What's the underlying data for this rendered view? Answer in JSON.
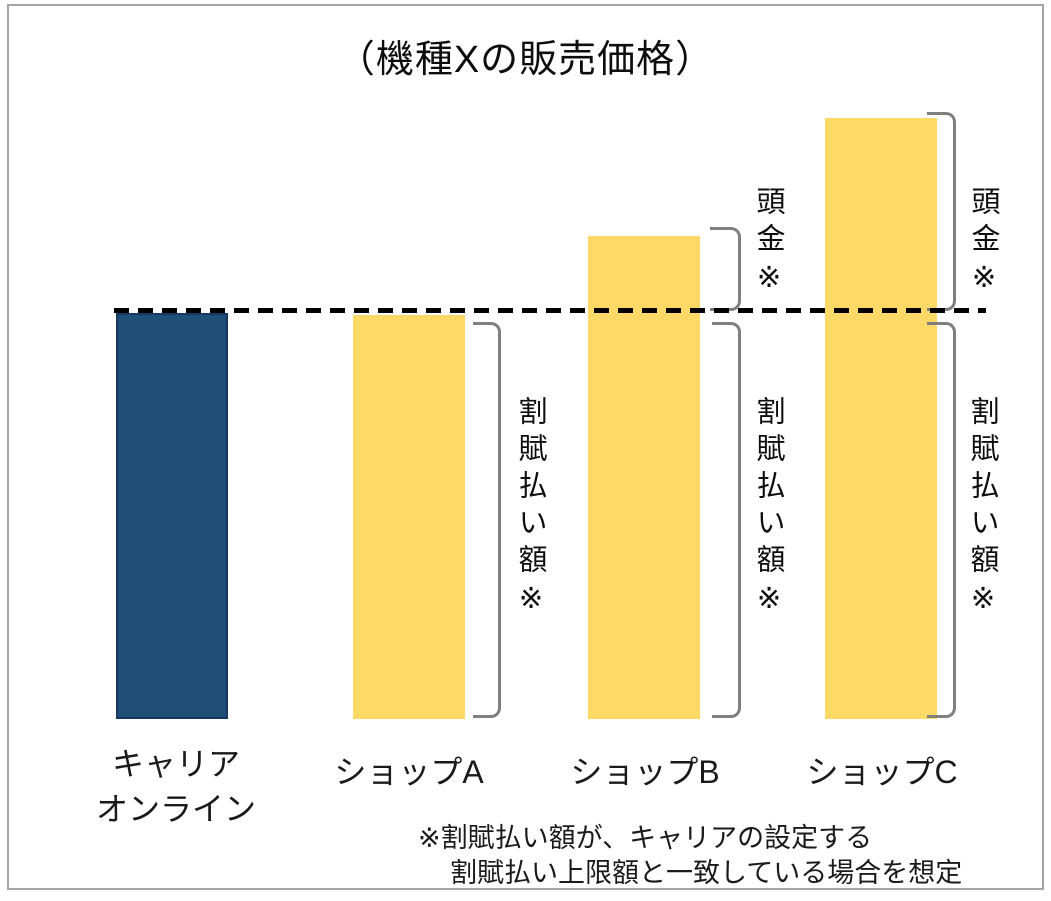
{
  "chart_data": {
    "type": "bar",
    "title": "（機種Xの販売価格）",
    "categories": [
      "キャリアオンライン",
      "ショップA",
      "ショップB",
      "ショップC"
    ],
    "categories_display": [
      [
        "キャリア",
        "オンライン"
      ],
      [
        "ショップA"
      ],
      [
        "ショップB"
      ],
      [
        "ショップC"
      ]
    ],
    "values": [
      100,
      99.5,
      119,
      148
    ],
    "value_scale": "relative; no axis shown; carrier online price = 100 (estimated from pixels)",
    "ylim": [
      0,
      155
    ],
    "grid": false,
    "legend": false,
    "bar_colors": [
      "#1f4e79",
      "#ffd966",
      "#ffd966",
      "#ffd966"
    ],
    "reference_line": {
      "value": 100,
      "style": "dashed",
      "color": "#000000"
    },
    "annotations": [
      {
        "bar": "ショップB",
        "segment": "above_reference_line",
        "label": "頭金※"
      },
      {
        "bar": "ショップC",
        "segment": "above_reference_line",
        "label": "頭金※"
      },
      {
        "bar": "ショップA",
        "segment": "below_reference_line",
        "label": "割賦払い額※"
      },
      {
        "bar": "ショップB",
        "segment": "below_reference_line",
        "label": "割賦払い額※"
      },
      {
        "bar": "ショップC",
        "segment": "below_reference_line",
        "label": "割賦払い額※"
      }
    ],
    "footnote": [
      "※割賦払い額が、キャリアの設定する",
      "割賦払い上限額と一致している場合を想定"
    ],
    "bracket_color": "#7f7f7f",
    "frame_border_color": "#a6a6a6"
  }
}
